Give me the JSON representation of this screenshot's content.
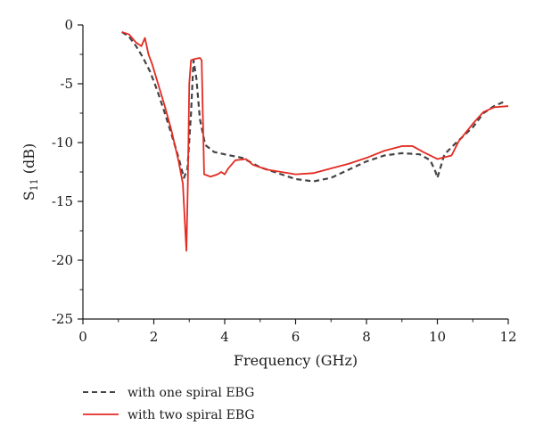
{
  "chart_data": {
    "type": "line",
    "xlabel": "Frequency (GHz)",
    "ylabel_main": "S",
    "ylabel_sub": "11",
    "ylabel_unit": " (dB)",
    "xlim": [
      0,
      12
    ],
    "ylim": [
      -25,
      0
    ],
    "x_ticks": [
      0,
      2,
      4,
      6,
      8,
      10,
      12
    ],
    "y_ticks": [
      0,
      -5,
      -10,
      -15,
      -20,
      -25
    ],
    "grid": false,
    "legend_position": "bottom-left, below plot",
    "series": [
      {
        "name": "with one spiral EBG",
        "color": "#444444",
        "style": "dashed",
        "points": [
          [
            1.1,
            -0.6
          ],
          [
            1.3,
            -1.0
          ],
          [
            1.5,
            -1.8
          ],
          [
            1.7,
            -2.8
          ],
          [
            1.9,
            -4.0
          ],
          [
            2.1,
            -5.6
          ],
          [
            2.3,
            -7.4
          ],
          [
            2.5,
            -9.3
          ],
          [
            2.7,
            -11.3
          ],
          [
            2.85,
            -13.0
          ],
          [
            2.95,
            -12.2
          ],
          [
            3.05,
            -7.5
          ],
          [
            3.12,
            -3.0
          ],
          [
            3.2,
            -4.5
          ],
          [
            3.3,
            -8.0
          ],
          [
            3.45,
            -10.2
          ],
          [
            3.7,
            -10.8
          ],
          [
            4.0,
            -11.0
          ],
          [
            4.5,
            -11.3
          ],
          [
            5.0,
            -12.1
          ],
          [
            5.5,
            -12.6
          ],
          [
            6.0,
            -13.1
          ],
          [
            6.5,
            -13.3
          ],
          [
            7.0,
            -13.0
          ],
          [
            7.5,
            -12.3
          ],
          [
            8.0,
            -11.6
          ],
          [
            8.5,
            -11.1
          ],
          [
            9.0,
            -10.9
          ],
          [
            9.5,
            -11.0
          ],
          [
            9.8,
            -11.5
          ],
          [
            9.95,
            -12.5
          ],
          [
            10.0,
            -13.0
          ],
          [
            10.2,
            -11.0
          ],
          [
            10.5,
            -10.1
          ],
          [
            11.0,
            -8.7
          ],
          [
            11.3,
            -7.5
          ],
          [
            11.6,
            -6.9
          ],
          [
            11.9,
            -6.5
          ]
        ]
      },
      {
        "name": "with two spiral EBG",
        "color": "#e32b22",
        "style": "solid",
        "points": [
          [
            1.1,
            -0.6
          ],
          [
            1.3,
            -0.8
          ],
          [
            1.5,
            -1.5
          ],
          [
            1.65,
            -1.8
          ],
          [
            1.75,
            -1.1
          ],
          [
            1.85,
            -2.5
          ],
          [
            1.95,
            -3.3
          ],
          [
            2.1,
            -4.8
          ],
          [
            2.3,
            -6.8
          ],
          [
            2.5,
            -9.0
          ],
          [
            2.7,
            -11.6
          ],
          [
            2.82,
            -13.5
          ],
          [
            2.88,
            -17.0
          ],
          [
            2.92,
            -19.2
          ],
          [
            2.96,
            -13.5
          ],
          [
            3.0,
            -5.0
          ],
          [
            3.05,
            -3.0
          ],
          [
            3.15,
            -2.9
          ],
          [
            3.3,
            -2.8
          ],
          [
            3.35,
            -3.0
          ],
          [
            3.42,
            -12.7
          ],
          [
            3.6,
            -12.9
          ],
          [
            3.8,
            -12.7
          ],
          [
            3.9,
            -12.5
          ],
          [
            4.0,
            -12.7
          ],
          [
            4.1,
            -12.2
          ],
          [
            4.3,
            -11.5
          ],
          [
            4.6,
            -11.4
          ],
          [
            4.8,
            -11.9
          ],
          [
            5.2,
            -12.3
          ],
          [
            5.6,
            -12.5
          ],
          [
            6.0,
            -12.7
          ],
          [
            6.5,
            -12.6
          ],
          [
            7.0,
            -12.2
          ],
          [
            7.5,
            -11.8
          ],
          [
            8.0,
            -11.3
          ],
          [
            8.5,
            -10.7
          ],
          [
            9.0,
            -10.3
          ],
          [
            9.3,
            -10.3
          ],
          [
            9.6,
            -10.8
          ],
          [
            10.0,
            -11.4
          ],
          [
            10.4,
            -11.1
          ],
          [
            10.6,
            -9.9
          ],
          [
            11.0,
            -8.4
          ],
          [
            11.3,
            -7.4
          ],
          [
            11.6,
            -7.0
          ],
          [
            12.0,
            -6.9
          ]
        ]
      }
    ]
  }
}
